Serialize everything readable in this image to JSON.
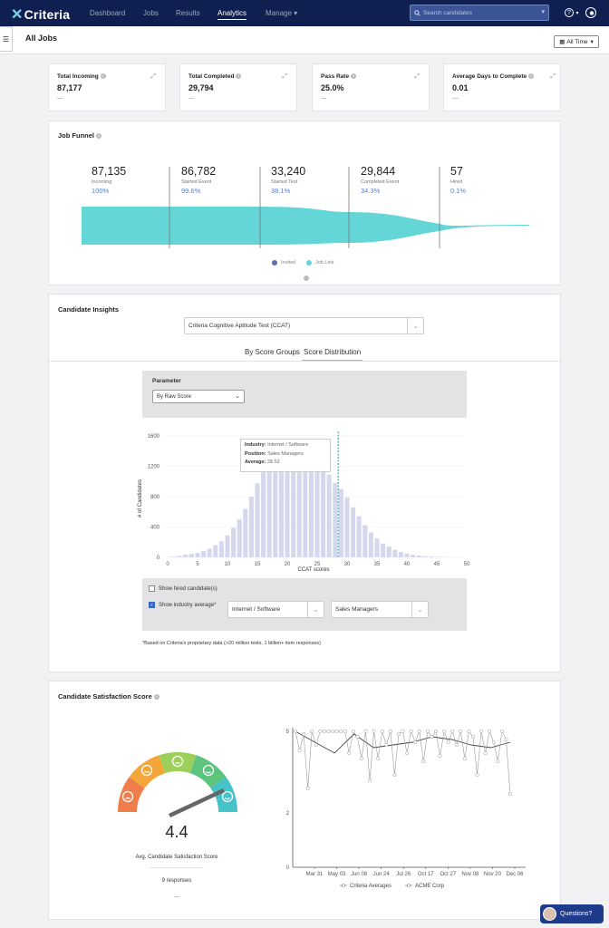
{
  "nav": {
    "logo": "Criteria",
    "links": [
      "Dashboard",
      "Jobs",
      "Results",
      "Analytics",
      "Manage"
    ],
    "search_placeholder": "Search candidates",
    "help": "?"
  },
  "page": {
    "title": "All Jobs",
    "filter": "All Time"
  },
  "kpis": [
    {
      "title": "Total Incoming",
      "value": "87,177",
      "sub": "---"
    },
    {
      "title": "Total Completed",
      "value": "29,794",
      "sub": "---"
    },
    {
      "title": "Pass Rate",
      "value": "25.0%",
      "sub": "---"
    },
    {
      "title": "Average Days to Complete",
      "value": "0.01",
      "sub": "---"
    }
  ],
  "funnel": {
    "title": "Job Funnel",
    "stages": [
      {
        "value": "87,135",
        "label": "Incoming",
        "pct": "100%"
      },
      {
        "value": "86,782",
        "label": "Started Event",
        "pct": "99.6%"
      },
      {
        "value": "33,240",
        "label": "Started Test",
        "pct": "38.1%"
      },
      {
        "value": "29,844",
        "label": "Completed Event",
        "pct": "34.3%"
      },
      {
        "value": "57",
        "label": "Hired",
        "pct": "0.1%"
      }
    ],
    "legend": [
      "Invited",
      "Job Link"
    ],
    "colors": {
      "invited": "#5a6fae",
      "joblink": "#5fd6d6"
    }
  },
  "insights": {
    "title": "Candidate Insights",
    "test_select": "Criteria Cognitive Aptitude Test (CCAT)",
    "tabs": [
      "By Score Groups",
      "Score Distribution"
    ],
    "param_label": "Parameter",
    "param_value": "By Raw Score",
    "tooltip": {
      "industry_label": "Industry:",
      "industry": "Internet / Software",
      "position_label": "Position:",
      "position": "Sales Managers",
      "average_label": "Average:",
      "average": "28.52"
    },
    "show_hired": "Show hired candidate(s)",
    "show_industry": "Show industry average*",
    "industry_select": "Internet / Software",
    "position_select": "Sales Managers",
    "footnote": "*Based on Criteria's proprietary data (>20 million tests, 1 billion+ item responses)"
  },
  "chart_data": [
    {
      "type": "bar",
      "title": "",
      "xlabel": "CCAT scores",
      "ylabel": "# of Candidates",
      "x_ticks": [
        0,
        5,
        10,
        15,
        20,
        25,
        30,
        35,
        40,
        45,
        50
      ],
      "y_ticks": [
        0,
        400,
        800,
        1200,
        1600
      ],
      "ylim": [
        0,
        1600
      ],
      "xlim": [
        0,
        50
      ],
      "categories": [
        0,
        1,
        2,
        3,
        4,
        5,
        6,
        7,
        8,
        9,
        10,
        11,
        12,
        13,
        14,
        15,
        16,
        17,
        18,
        19,
        20,
        21,
        22,
        23,
        24,
        25,
        26,
        27,
        28,
        29,
        30,
        31,
        32,
        33,
        34,
        35,
        36,
        37,
        38,
        39,
        40,
        41,
        42,
        43,
        44,
        45,
        46,
        47,
        48,
        49,
        50
      ],
      "values": [
        5,
        10,
        20,
        35,
        45,
        60,
        85,
        115,
        160,
        210,
        290,
        390,
        500,
        640,
        800,
        975,
        1120,
        1195,
        1200,
        1200,
        1200,
        1200,
        1200,
        1200,
        1200,
        1200,
        1180,
        1090,
        980,
        900,
        790,
        660,
        540,
        425,
        330,
        250,
        180,
        140,
        100,
        70,
        50,
        35,
        25,
        15,
        10,
        6,
        4,
        3,
        2,
        1,
        0
      ],
      "reference_line": {
        "x": 28.52,
        "label": "Average"
      }
    },
    {
      "type": "line",
      "x_ticks": [
        "Mar 31",
        "May 03",
        "Jun 08",
        "Jun 24",
        "Jul 26",
        "Oct 17",
        "Oct 27",
        "Nov 08",
        "Nov 20",
        "Dec 06"
      ],
      "y_ticks": [
        0,
        2,
        5
      ],
      "ylim": [
        0,
        5
      ],
      "series": [
        {
          "name": "Criteria Averages",
          "values": [
            5,
            4.6,
            4.2,
            4.9,
            4.4,
            4.5,
            4.6,
            4.8,
            4.7,
            4.5,
            4.4,
            4.6
          ]
        },
        {
          "name": "ACME Corp",
          "values": [
            5,
            4.3,
            4.9,
            2.9,
            5,
            4.5,
            5,
            5,
            5,
            5,
            5,
            5,
            5,
            4.2,
            5,
            4.8,
            4,
            5,
            3.2,
            5,
            4,
            5,
            4.5,
            5,
            3.4,
            4.9,
            5,
            4.2,
            5,
            4.6,
            5,
            3.9,
            5,
            4.8,
            5,
            4.1,
            5,
            4.6,
            5,
            4.5,
            5,
            4,
            5,
            4.8,
            3.4,
            5,
            4.2,
            5,
            4.6,
            3.9,
            5,
            4.7,
            2.7
          ]
        }
      ]
    }
  ],
  "satisfaction": {
    "title": "Candidate Satisfaction Score",
    "score": "4.4",
    "score_label": "Avg. Candidate Satisfaction Score",
    "responses": "9 responses",
    "sub": "---",
    "gauge_colors": [
      "#f07e4b",
      "#f5a63b",
      "#9dd05a",
      "#5cc47c",
      "#46c2c9"
    ]
  },
  "questions_label": "Questions?"
}
